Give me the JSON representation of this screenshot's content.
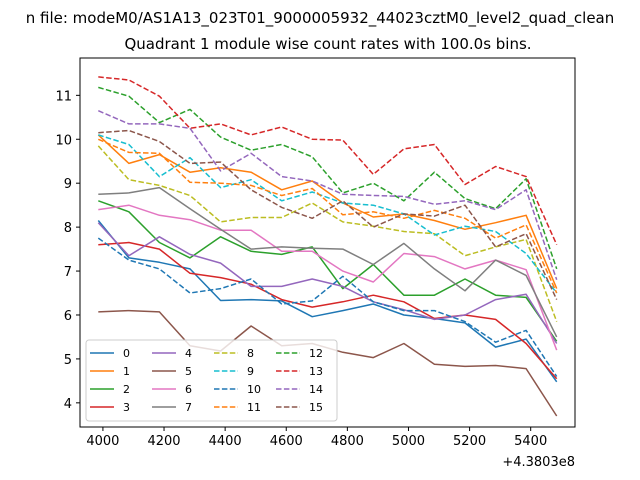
{
  "figure": {
    "suptitle": "n file: modeM0/AS1A13_023T01_9000005932_44023cztM0_level2_quad_clean",
    "background": "#ffffff"
  },
  "chart_data": {
    "type": "line",
    "title": "Quadrant 1 module wise count rates with 100.0s bins.",
    "xlabel": "",
    "ylabel": "",
    "x_offset_label": "+4.3803e8",
    "x": [
      3985,
      4085,
      4185,
      4285,
      4385,
      4485,
      4585,
      4685,
      4785,
      4885,
      4985,
      5085,
      5185,
      5285,
      5385,
      5485
    ],
    "xlim": [
      3925,
      5545
    ],
    "ylim": [
      3.45,
      11.85
    ],
    "xticks": [
      4000,
      4200,
      4400,
      4600,
      4800,
      5000,
      5200,
      5400
    ],
    "xtick_labels": [
      "4000",
      "4200",
      "4400",
      "4600",
      "4800",
      "5000",
      "5200",
      "5400"
    ],
    "yticks": [
      4,
      5,
      6,
      7,
      8,
      9,
      10,
      11
    ],
    "ytick_labels": [
      "4",
      "5",
      "6",
      "7",
      "8",
      "9",
      "10",
      "11"
    ],
    "grid": false,
    "legend": {
      "placement": "lower-left",
      "columns": 4
    },
    "series": [
      {
        "name": "0",
        "color": "#1f77b4",
        "dash": "solid",
        "values": [
          8.15,
          7.3,
          7.2,
          7.05,
          6.33,
          6.35,
          6.32,
          5.96,
          6.1,
          6.25,
          6.0,
          5.92,
          5.82,
          5.27,
          5.45,
          4.48
        ]
      },
      {
        "name": "1",
        "color": "#ff7f0e",
        "dash": "solid",
        "values": [
          10.1,
          9.45,
          9.65,
          9.25,
          9.35,
          9.25,
          8.85,
          9.05,
          8.55,
          8.23,
          8.3,
          8.15,
          7.95,
          8.1,
          8.27,
          6.6
        ]
      },
      {
        "name": "2",
        "color": "#2ca02c",
        "dash": "solid",
        "values": [
          8.6,
          8.35,
          7.65,
          7.3,
          7.78,
          7.45,
          7.38,
          7.55,
          6.6,
          7.15,
          6.45,
          6.45,
          6.82,
          6.45,
          6.4,
          5.4
        ]
      },
      {
        "name": "3",
        "color": "#d62728",
        "dash": "solid",
        "values": [
          7.6,
          7.65,
          7.5,
          6.95,
          6.85,
          6.7,
          6.35,
          6.18,
          6.3,
          6.45,
          6.3,
          5.92,
          6.0,
          5.9,
          5.35,
          4.55
        ]
      },
      {
        "name": "4",
        "color": "#9467bd",
        "dash": "solid",
        "values": [
          8.1,
          7.35,
          7.78,
          7.38,
          7.18,
          6.65,
          6.65,
          6.82,
          6.65,
          6.3,
          6.12,
          5.9,
          6.0,
          6.35,
          6.47,
          5.35
        ]
      },
      {
        "name": "5",
        "color": "#8c564b",
        "dash": "solid",
        "values": [
          6.07,
          6.1,
          6.07,
          5.3,
          5.18,
          5.75,
          5.3,
          5.35,
          5.15,
          5.03,
          5.35,
          4.88,
          4.83,
          4.85,
          4.78,
          3.7
        ]
      },
      {
        "name": "6",
        "color": "#e377c2",
        "dash": "solid",
        "values": [
          8.4,
          8.5,
          8.27,
          8.17,
          7.93,
          7.93,
          7.45,
          7.45,
          7.0,
          6.75,
          7.4,
          7.33,
          7.05,
          7.25,
          7.03,
          5.2
        ]
      },
      {
        "name": "7",
        "color": "#7f7f7f",
        "dash": "solid",
        "values": [
          8.75,
          8.78,
          8.9,
          8.42,
          7.95,
          7.5,
          7.55,
          7.52,
          7.5,
          7.15,
          7.63,
          7.05,
          6.55,
          7.25,
          6.9,
          5.5
        ]
      },
      {
        "name": "8",
        "color": "#bcbd22",
        "dash": "dashed",
        "values": [
          9.85,
          9.08,
          8.95,
          8.72,
          8.12,
          8.22,
          8.22,
          8.55,
          8.12,
          8.02,
          7.9,
          7.85,
          7.35,
          7.55,
          7.72,
          5.85
        ]
      },
      {
        "name": "9",
        "color": "#17becf",
        "dash": "dashed",
        "values": [
          10.1,
          9.88,
          9.15,
          9.58,
          8.9,
          9.08,
          8.6,
          8.8,
          8.55,
          8.5,
          8.3,
          7.82,
          8.02,
          7.9,
          7.4,
          6.5
        ]
      },
      {
        "name": "10",
        "color": "#1f77b4",
        "dash": "dashed",
        "values": [
          7.75,
          7.25,
          7.05,
          6.5,
          6.6,
          6.82,
          6.25,
          6.32,
          6.88,
          6.3,
          6.1,
          6.1,
          5.85,
          5.38,
          5.65,
          4.6
        ]
      },
      {
        "name": "11",
        "color": "#ff7f0e",
        "dash": "dashed",
        "values": [
          10.0,
          9.7,
          9.68,
          9.02,
          9.0,
          8.95,
          8.72,
          8.88,
          8.28,
          8.35,
          8.2,
          8.38,
          8.2,
          7.75,
          8.05,
          6.5
        ]
      },
      {
        "name": "12",
        "color": "#2ca02c",
        "dash": "dashed",
        "values": [
          11.18,
          10.98,
          10.38,
          10.68,
          10.05,
          9.75,
          9.88,
          9.6,
          8.78,
          9.0,
          8.6,
          9.25,
          8.65,
          8.42,
          9.1,
          7.05
        ]
      },
      {
        "name": "13",
        "color": "#d62728",
        "dash": "dashed",
        "values": [
          11.42,
          11.35,
          10.98,
          10.25,
          10.35,
          10.1,
          10.28,
          10.0,
          9.98,
          9.2,
          9.78,
          9.88,
          8.97,
          9.38,
          9.15,
          7.6
        ]
      },
      {
        "name": "14",
        "color": "#9467bd",
        "dash": "dashed",
        "values": [
          10.65,
          10.35,
          10.35,
          10.25,
          9.28,
          9.68,
          9.15,
          9.05,
          8.75,
          8.72,
          8.7,
          8.52,
          8.6,
          8.4,
          8.85,
          6.8
        ]
      },
      {
        "name": "15",
        "color": "#8c564b",
        "dash": "dashed",
        "values": [
          10.15,
          10.2,
          9.95,
          9.45,
          9.48,
          8.85,
          8.45,
          8.2,
          8.6,
          8.0,
          8.3,
          8.25,
          8.5,
          7.55,
          7.85,
          6.35
        ]
      }
    ]
  }
}
